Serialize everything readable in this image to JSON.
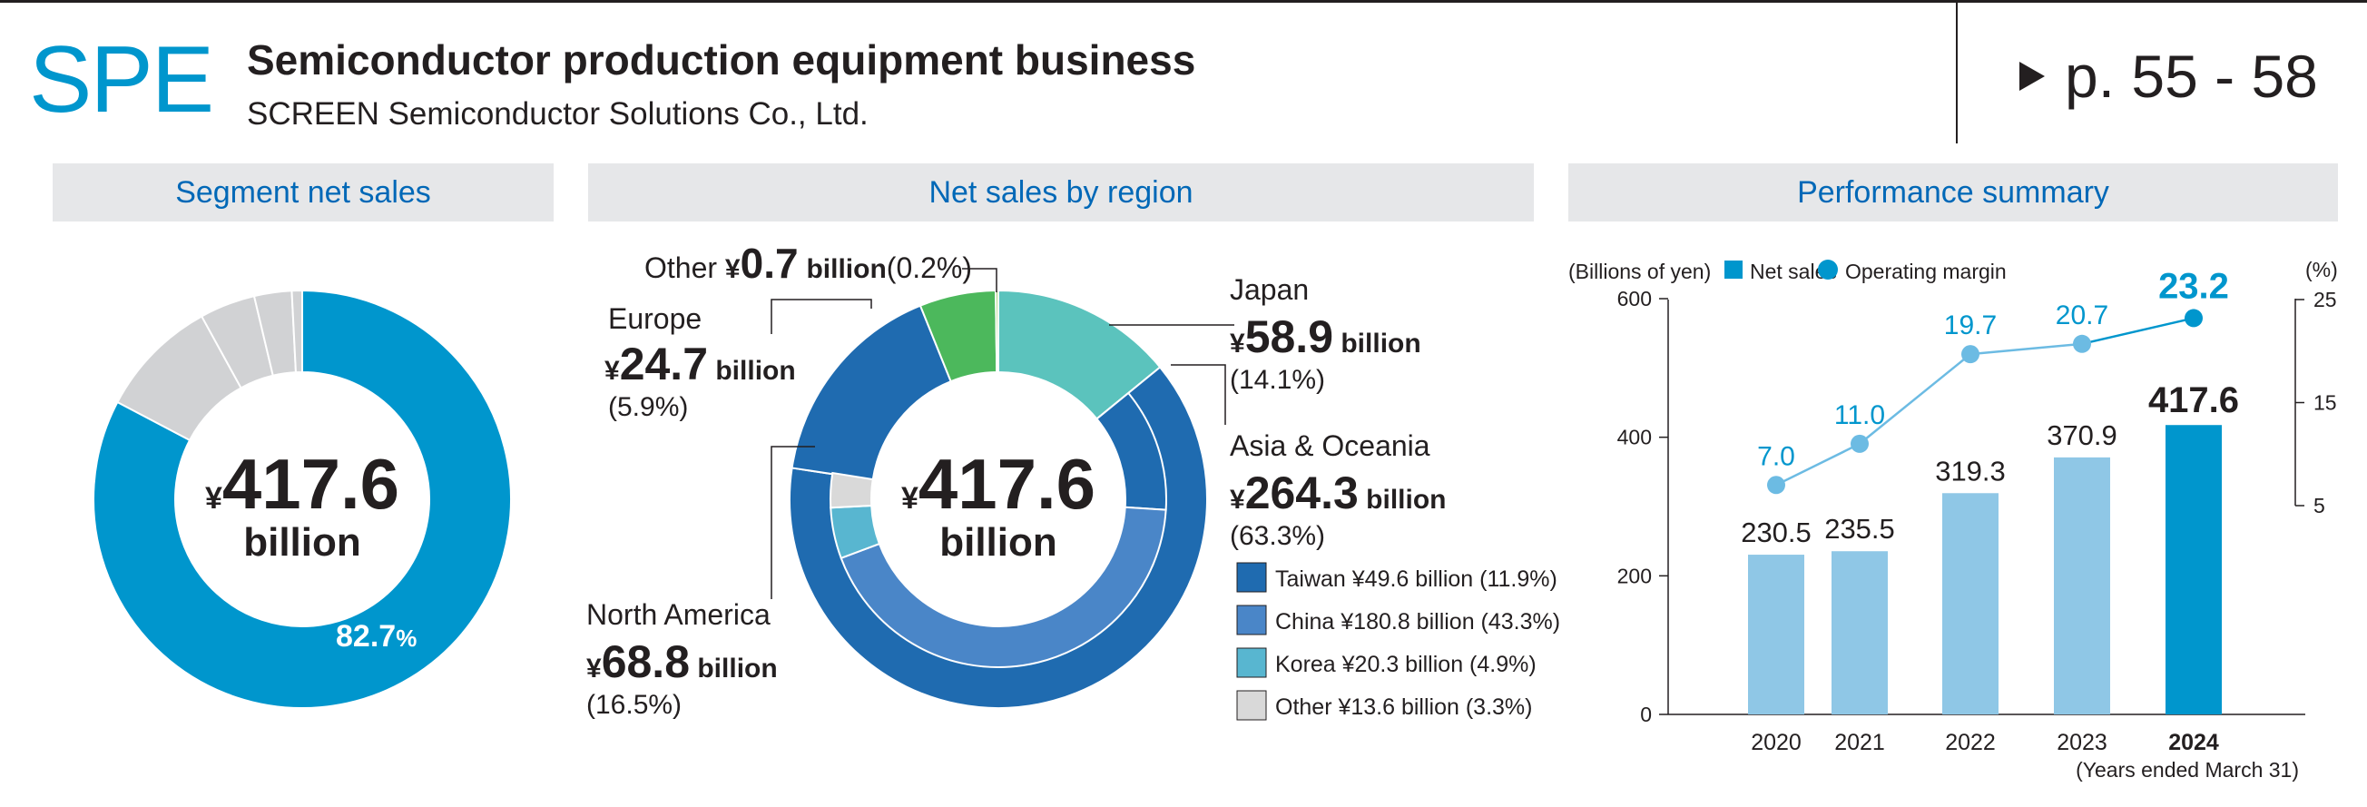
{
  "header": {
    "segment_code": "SPE",
    "title": "Semiconductor production equipment business",
    "subtitle": "SCREEN Semiconductor Solutions Co., Ltd.",
    "page_ref": "p. 55 - 58"
  },
  "panels": {
    "segment": {
      "heading": "Segment net sales"
    },
    "region": {
      "heading": "Net sales by region"
    },
    "performance": {
      "heading": "Performance summary"
    }
  },
  "colors": {
    "accent": "#0096cd",
    "heading_blue": "#0068b7",
    "light_bar": "#8fc7e6",
    "light_line": "#6cbbe3",
    "gray": "#d1d2d4",
    "japan": "#5bc3bd",
    "europe": "#4cb85c",
    "other_green": "#98cc62",
    "asia": "#1f6bb0",
    "taiwan": "#1f6bb0",
    "china": "#4a86c8",
    "korea": "#58b6d0",
    "other_gray": "#d9d9d9"
  },
  "chart_data": [
    {
      "type": "pie",
      "variant": "donut",
      "center_currency": "¥",
      "center_value": "417.6",
      "center_unit": "billion",
      "slices": [
        {
          "value": 82.7,
          "label": "82.7",
          "unit": "%",
          "color": "#0096cd"
        },
        {
          "value": 9.3,
          "color": "#d1d2d4"
        },
        {
          "value": 4.3,
          "color": "#d1d2d4"
        },
        {
          "value": 2.9,
          "color": "#d1d2d4"
        },
        {
          "value": 0.8,
          "color": "#d1d2d4"
        }
      ]
    },
    {
      "type": "pie",
      "variant": "double-donut",
      "center_currency": "¥",
      "center_value": "417.6",
      "center_unit": "billion",
      "regions": [
        {
          "key": "japan",
          "name": "Japan",
          "currency": "¥",
          "amount": "58.9",
          "unit": "billion",
          "percent": "(14.1%)",
          "value": 14.1
        },
        {
          "key": "asia",
          "name": "Asia & Oceania",
          "currency": "¥",
          "amount": "264.3",
          "unit": "billion",
          "percent": "(63.3%)",
          "value": 63.3
        },
        {
          "key": "north_america",
          "name": "North America",
          "currency": "¥",
          "amount": "68.8",
          "unit": "billion",
          "percent": "(16.5%)",
          "value": 16.5
        },
        {
          "key": "europe",
          "name": "Europe",
          "currency": "¥",
          "amount": "24.7",
          "unit": "billion",
          "percent": "(5.9%)",
          "value": 5.9
        },
        {
          "key": "other",
          "name": "Other",
          "currency": "¥",
          "amount": "0.7",
          "unit": "billion",
          "percent": "(0.2%)",
          "value": 0.2
        }
      ],
      "asia_breakdown": [
        {
          "key": "taiwan",
          "label": "Taiwan ¥49.6 billion (11.9%)",
          "value": 11.9
        },
        {
          "key": "china",
          "label": "China ¥180.8 billion (43.3%)",
          "value": 43.3
        },
        {
          "key": "korea",
          "label": "Korea ¥20.3 billion (4.9%)",
          "value": 4.9
        },
        {
          "key": "other_asia",
          "label": "Other ¥13.6 billion (3.3%)",
          "value": 3.3
        }
      ]
    },
    {
      "type": "bar",
      "combo_line": true,
      "categories": [
        "2020",
        "2021",
        "2022",
        "2023",
        "2024"
      ],
      "series": [
        {
          "name": "Net sales",
          "type": "bar",
          "values": [
            230.5,
            235.5,
            319.3,
            370.9,
            417.6
          ],
          "labels": [
            "230.5",
            "235.5",
            "319.3",
            "370.9",
            "417.6"
          ]
        },
        {
          "name": "Operating margin",
          "type": "line",
          "values": [
            7.0,
            11.0,
            19.7,
            20.7,
            23.2
          ],
          "labels": [
            "7.0",
            "11.0",
            "19.7",
            "20.7",
            "23.2"
          ]
        }
      ],
      "ylabel_left": "(Billions of yen)",
      "ylabel_right": "(%)",
      "y_left_ticks": [
        "0",
        "200",
        "400",
        "600"
      ],
      "y_left_lim": [
        0,
        600
      ],
      "y_right_ticks": [
        "5",
        "15",
        "25"
      ],
      "y_right_lim": [
        5,
        25
      ],
      "xnote": "(Years ended March 31)",
      "highlight_category": "2024",
      "legend_position": "top"
    }
  ]
}
